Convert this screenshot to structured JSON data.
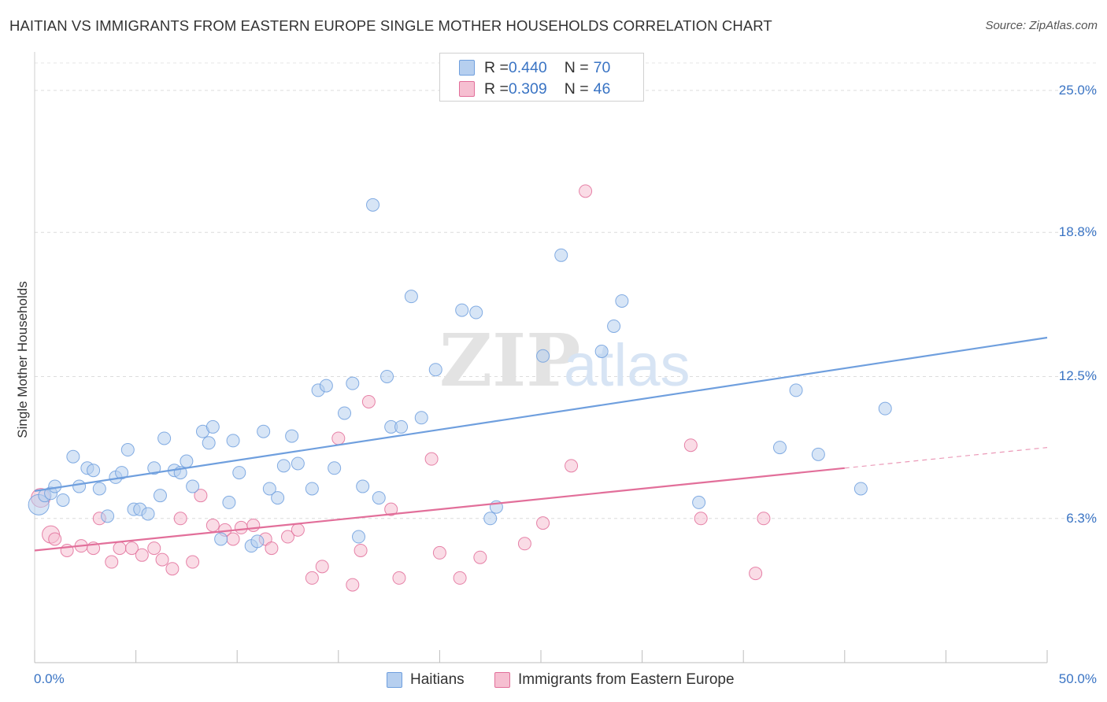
{
  "chart_data": {
    "type": "scatter",
    "title": "HAITIAN VS IMMIGRANTS FROM EASTERN EUROPE SINGLE MOTHER HOUSEHOLDS CORRELATION CHART",
    "source": "Source: ZipAtlas.com",
    "watermark_main": "ZIP",
    "watermark_sub": "atlas",
    "ylabel": "Single Mother Households",
    "xlim": [
      0,
      50
    ],
    "ylim": [
      0,
      26.2
    ],
    "y_ticks": [
      {
        "value": 6.3,
        "label": "6.3%"
      },
      {
        "value": 12.5,
        "label": "12.5%"
      },
      {
        "value": 18.8,
        "label": "18.8%"
      },
      {
        "value": 25.0,
        "label": "25.0%"
      }
    ],
    "x_tick_labels": {
      "min": "0.0%",
      "max": "50.0%"
    },
    "grid": true,
    "legend_position": "top-center",
    "series": [
      {
        "name": "Haitians",
        "color": "#6f9fde",
        "fill": "#b6cfef",
        "R": "0.440",
        "N": "70",
        "trend": {
          "x0": 0,
          "y0": 7.5,
          "x1": 50,
          "y1": 14.2,
          "dashed_from": null
        },
        "points": [
          [
            0.2,
            6.9
          ],
          [
            0.5,
            7.3
          ],
          [
            0.8,
            7.4
          ],
          [
            1.0,
            7.7
          ],
          [
            1.4,
            7.1
          ],
          [
            1.9,
            9.0
          ],
          [
            2.2,
            7.7
          ],
          [
            2.6,
            8.5
          ],
          [
            2.9,
            8.4
          ],
          [
            3.2,
            7.6
          ],
          [
            3.6,
            6.4
          ],
          [
            4.0,
            8.1
          ],
          [
            4.3,
            8.3
          ],
          [
            4.6,
            9.3
          ],
          [
            4.9,
            6.7
          ],
          [
            5.2,
            6.7
          ],
          [
            5.6,
            6.5
          ],
          [
            5.9,
            8.5
          ],
          [
            6.2,
            7.3
          ],
          [
            6.4,
            9.8
          ],
          [
            6.9,
            8.4
          ],
          [
            7.2,
            8.3
          ],
          [
            7.5,
            8.8
          ],
          [
            7.8,
            7.7
          ],
          [
            8.3,
            10.1
          ],
          [
            8.6,
            9.6
          ],
          [
            8.8,
            10.3
          ],
          [
            9.2,
            5.4
          ],
          [
            9.6,
            7.0
          ],
          [
            9.8,
            9.7
          ],
          [
            10.1,
            8.3
          ],
          [
            10.7,
            5.1
          ],
          [
            11.0,
            5.3
          ],
          [
            11.3,
            10.1
          ],
          [
            11.6,
            7.6
          ],
          [
            12.0,
            7.2
          ],
          [
            12.3,
            8.6
          ],
          [
            12.7,
            9.9
          ],
          [
            13.0,
            8.7
          ],
          [
            13.7,
            7.6
          ],
          [
            14.0,
            11.9
          ],
          [
            14.4,
            12.1
          ],
          [
            14.8,
            8.5
          ],
          [
            15.3,
            10.9
          ],
          [
            15.7,
            12.2
          ],
          [
            16.0,
            5.5
          ],
          [
            16.2,
            7.7
          ],
          [
            16.7,
            20.0
          ],
          [
            17.0,
            7.2
          ],
          [
            17.4,
            12.5
          ],
          [
            17.6,
            10.3
          ],
          [
            18.1,
            10.3
          ],
          [
            18.6,
            16.0
          ],
          [
            19.1,
            10.7
          ],
          [
            19.8,
            12.8
          ],
          [
            21.1,
            15.4
          ],
          [
            21.8,
            15.3
          ],
          [
            22.5,
            6.3
          ],
          [
            22.8,
            6.8
          ],
          [
            25.1,
            13.4
          ],
          [
            26.0,
            17.8
          ],
          [
            28.0,
            13.6
          ],
          [
            28.6,
            14.7
          ],
          [
            29.0,
            15.8
          ],
          [
            32.8,
            7.0
          ],
          [
            36.8,
            9.4
          ],
          [
            37.6,
            11.9
          ],
          [
            38.7,
            9.1
          ],
          [
            40.8,
            7.6
          ],
          [
            42.0,
            11.1
          ]
        ]
      },
      {
        "name": "Immigrants from Eastern Europe",
        "color": "#e26f9a",
        "fill": "#f6bfd1",
        "R": "0.309",
        "N": "46",
        "trend": {
          "x0": 0,
          "y0": 4.9,
          "x1": 50,
          "y1": 9.4,
          "dashed_from": 40
        },
        "points": [
          [
            0.3,
            7.2
          ],
          [
            0.8,
            5.6
          ],
          [
            1.0,
            5.4
          ],
          [
            1.6,
            4.9
          ],
          [
            2.3,
            5.1
          ],
          [
            2.9,
            5.0
          ],
          [
            3.2,
            6.3
          ],
          [
            3.8,
            4.4
          ],
          [
            4.2,
            5.0
          ],
          [
            4.8,
            5.0
          ],
          [
            5.3,
            4.7
          ],
          [
            5.9,
            5.0
          ],
          [
            6.3,
            4.5
          ],
          [
            6.8,
            4.1
          ],
          [
            7.2,
            6.3
          ],
          [
            7.8,
            4.4
          ],
          [
            8.2,
            7.3
          ],
          [
            8.8,
            6.0
          ],
          [
            9.4,
            5.8
          ],
          [
            9.8,
            5.4
          ],
          [
            10.2,
            5.9
          ],
          [
            10.8,
            6.0
          ],
          [
            11.4,
            5.4
          ],
          [
            11.7,
            5.0
          ],
          [
            12.5,
            5.5
          ],
          [
            13.0,
            5.8
          ],
          [
            13.7,
            3.7
          ],
          [
            14.2,
            4.2
          ],
          [
            15.0,
            9.8
          ],
          [
            15.7,
            3.4
          ],
          [
            16.1,
            4.9
          ],
          [
            16.5,
            11.4
          ],
          [
            17.6,
            6.7
          ],
          [
            18.0,
            3.7
          ],
          [
            19.6,
            8.9
          ],
          [
            20.0,
            4.8
          ],
          [
            21.0,
            3.7
          ],
          [
            22.0,
            4.6
          ],
          [
            24.2,
            5.2
          ],
          [
            25.1,
            6.1
          ],
          [
            26.5,
            8.6
          ],
          [
            27.2,
            20.6
          ],
          [
            32.4,
            9.5
          ],
          [
            32.9,
            6.3
          ],
          [
            35.6,
            3.9
          ],
          [
            36.0,
            6.3
          ]
        ]
      }
    ]
  },
  "legend_top": {
    "rows": [
      {
        "r_label": "R = ",
        "r_value": "0.440",
        "n_label": "N = ",
        "n_value": "70"
      },
      {
        "r_label": "R = ",
        "r_value": "0.309",
        "n_label": "N = ",
        "n_value": "46"
      }
    ]
  },
  "legend_bottom": {
    "items": [
      {
        "label": "Haitians"
      },
      {
        "label": "Immigrants from Eastern Europe"
      }
    ]
  }
}
